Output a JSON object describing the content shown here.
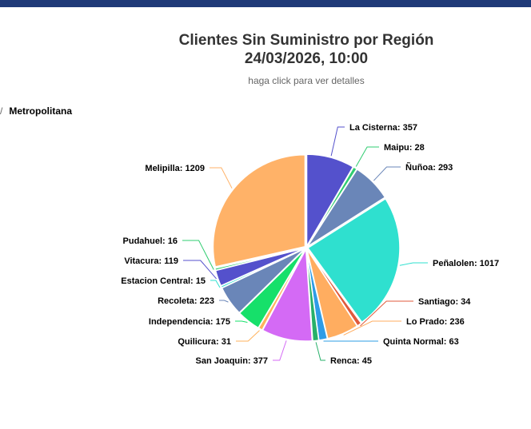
{
  "header": {
    "title_line1": "Clientes Sin Suministro por Región",
    "title_line2": "24/03/2026, 10:00",
    "subtitle": "haga click para ver detalles"
  },
  "breadcrumb": {
    "separator": "/",
    "current": "Metropolitana"
  },
  "chart_data": {
    "type": "pie",
    "title": "Clientes Sin Suministro por Región",
    "subtitle": "24/03/2026, 10:00",
    "categories": [
      "La Cisterna",
      "Maipu",
      "Ñuñoa",
      "Peñalolen",
      "Santiago",
      "Lo Prado",
      "Quinta Normal",
      "Renca",
      "San Joaquin",
      "Quilicura",
      "Independencia",
      "Recoleta",
      "Estacion Central",
      "Vitacura",
      "Pudahuel",
      "Melipilla"
    ],
    "values": [
      357,
      28,
      293,
      1017,
      34,
      236,
      63,
      45,
      377,
      31,
      175,
      223,
      15,
      119,
      16,
      1209
    ],
    "colors": [
      "#5451cc",
      "#2fcc70",
      "#6a86b8",
      "#2fe0cf",
      "#e05a3c",
      "#ffad60",
      "#2e9ce6",
      "#27b06a",
      "#d46af5",
      "#ffb35c",
      "#16e06a",
      "#6a86b8",
      "#2fe0cf",
      "#5451cc",
      "#2fcc70",
      "#ffb268"
    ],
    "labels": [
      "La Cisterna: 357",
      "Maipu: 28",
      "Ñuñoa: 293",
      "Peñalolen: 1017",
      "Santiago: 34",
      "Lo Prado: 236",
      "Quinta Normal: 63",
      "Renca: 45",
      "San Joaquin: 377",
      "Quilicura: 31",
      "Independencia: 175",
      "Recoleta: 223",
      "Estacion Central: 15",
      "Vitacura: 119",
      "Pudahuel: 16",
      "Melipilla: 1209"
    ],
    "legend": "none"
  }
}
